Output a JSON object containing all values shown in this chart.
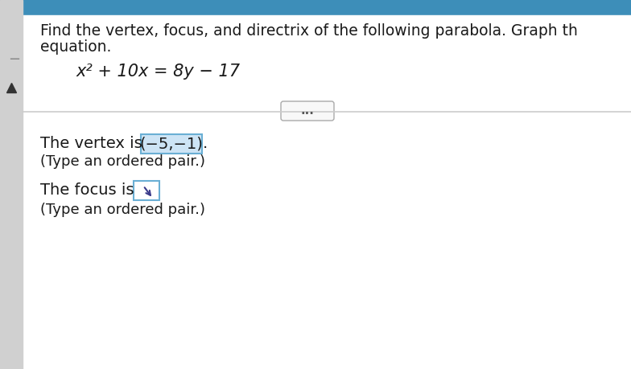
{
  "bg_color_top": "#3d8eb9",
  "bg_color_main": "#f0f0f0",
  "bg_color_white": "#ffffff",
  "title_line1": "Find the vertex, focus, and directrix of the following parabola. Graph th",
  "title_line2": "equation.",
  "equation": "x² + 10x = 8y − 17",
  "divider_color": "#cccccc",
  "dots_label": "...",
  "vertex_label": "The vertex is",
  "vertex_value": "(−5,−1)",
  "vertex_suffix": ".",
  "vertex_sub": "(Type an ordered pair.)",
  "focus_label": "The focus is",
  "focus_sub": "(Type an ordered pair.)",
  "left_bar_color": "#b0b0b0",
  "triangle_color": "#333333",
  "text_color": "#1a1a1a",
  "vertex_box_color": "#cde4f5",
  "vertex_box_border": "#6aafd4",
  "focus_box_border": "#6aafd4",
  "font_size_title": 13.5,
  "font_size_eq": 15,
  "font_size_body": 14,
  "font_size_sub": 13
}
